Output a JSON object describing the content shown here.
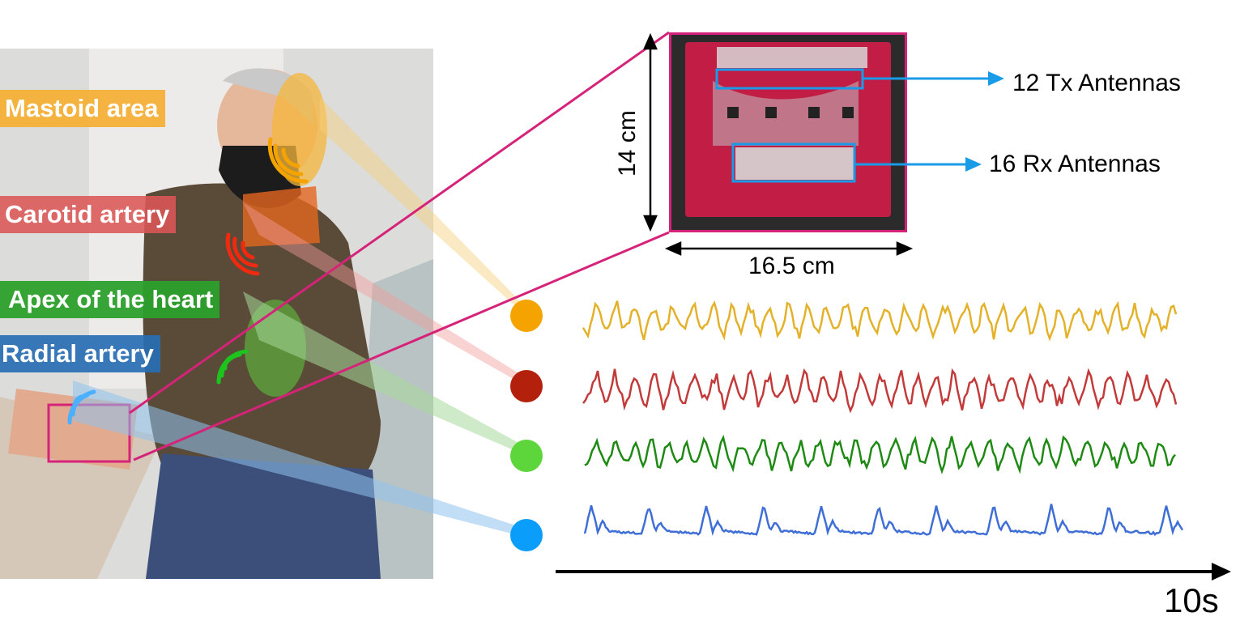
{
  "labels": {
    "mastoid": "Mastoid area",
    "carotid": "Carotid artery",
    "apex": "Apex of the heart",
    "radial": "Radial artery"
  },
  "device": {
    "tx_label": "12 Tx Antennas",
    "rx_label": "16 Rx Antennas",
    "width_label": "16.5 cm",
    "height_label": "14 cm"
  },
  "time_axis": {
    "label": "10s"
  },
  "colors": {
    "mastoid": "#f5a300",
    "carotid": "#b3200c",
    "apex": "#5dd63b",
    "radial": "#0a9dfa",
    "wave_mastoid": "#e3b12a",
    "wave_carotid": "#c23a3a",
    "wave_apex": "#1e8a14",
    "wave_radial": "#3f6fd6",
    "connector": "#d6237a",
    "arrow_blue": "#1a9be8"
  },
  "icons": [
    "wireless-signal-icon",
    "radar-board-image",
    "person-photo"
  ]
}
